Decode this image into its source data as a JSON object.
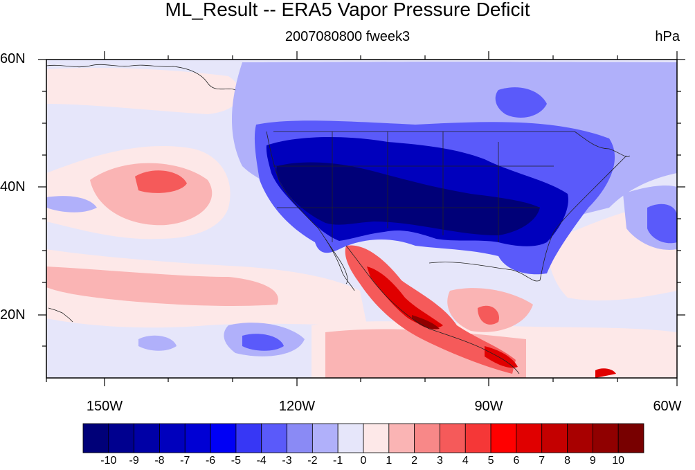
{
  "title": "ML_Result -- ERA5 Vapor Pressure Deficit",
  "subtitle": "2007080800 fweek3",
  "units": "hPa",
  "map": {
    "type": "filled-contour",
    "variable": "Vapor Pressure Deficit anomaly",
    "region": "North America / Eastern Pacific",
    "lon_range": [
      -160,
      -60
    ],
    "lat_range": [
      10,
      60
    ],
    "lat_labels": [
      "60N",
      "40N",
      "20N"
    ],
    "lon_labels": [
      "150W",
      "120W",
      "90W",
      "60W"
    ]
  },
  "colorbar": {
    "labels": [
      "-10",
      "-9",
      "-8",
      "-7",
      "-6",
      "-5",
      "-4",
      "-3",
      "-2",
      "-1",
      "0",
      "1",
      "2",
      "3",
      "4",
      "5",
      "6",
      "7",
      "8",
      "9",
      "10"
    ],
    "colors": [
      "#000078",
      "#00008f",
      "#0000a6",
      "#0000bd",
      "#0000d4",
      "#0000f5",
      "#3737f5",
      "#5a5afa",
      "#8a8af5",
      "#b0b0fa",
      "#e6e6fa",
      "#fde8e8",
      "#fab4b4",
      "#f88888",
      "#f55a5a",
      "#f53737",
      "#ff0000",
      "#e00000",
      "#c40000",
      "#a80000",
      "#900000",
      "#780000"
    ]
  }
}
